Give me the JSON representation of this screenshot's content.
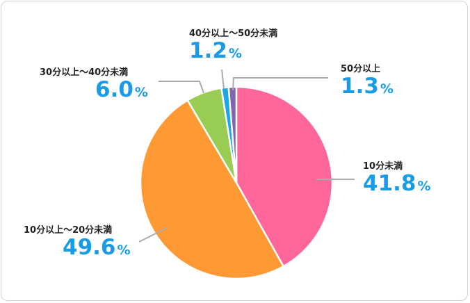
{
  "chart_data": {
    "type": "pie",
    "categories": [
      "10分未満",
      "10分以上～20分未満",
      "30分以上～40分未満",
      "40分以上～50分未満",
      "50分以上"
    ],
    "values": [
      41.8,
      49.6,
      6.0,
      1.2,
      1.3
    ],
    "value_labels": [
      "41.8",
      "49.6",
      "6.0",
      "1.2",
      "1.3"
    ],
    "unit": "%",
    "colors": [
      "#ff6699",
      "#ff9933",
      "#99cc52",
      "#1aa7e8",
      "#8066b0"
    ],
    "start": "12 o'clock, clockwise",
    "legend": "none (callout labels)"
  }
}
